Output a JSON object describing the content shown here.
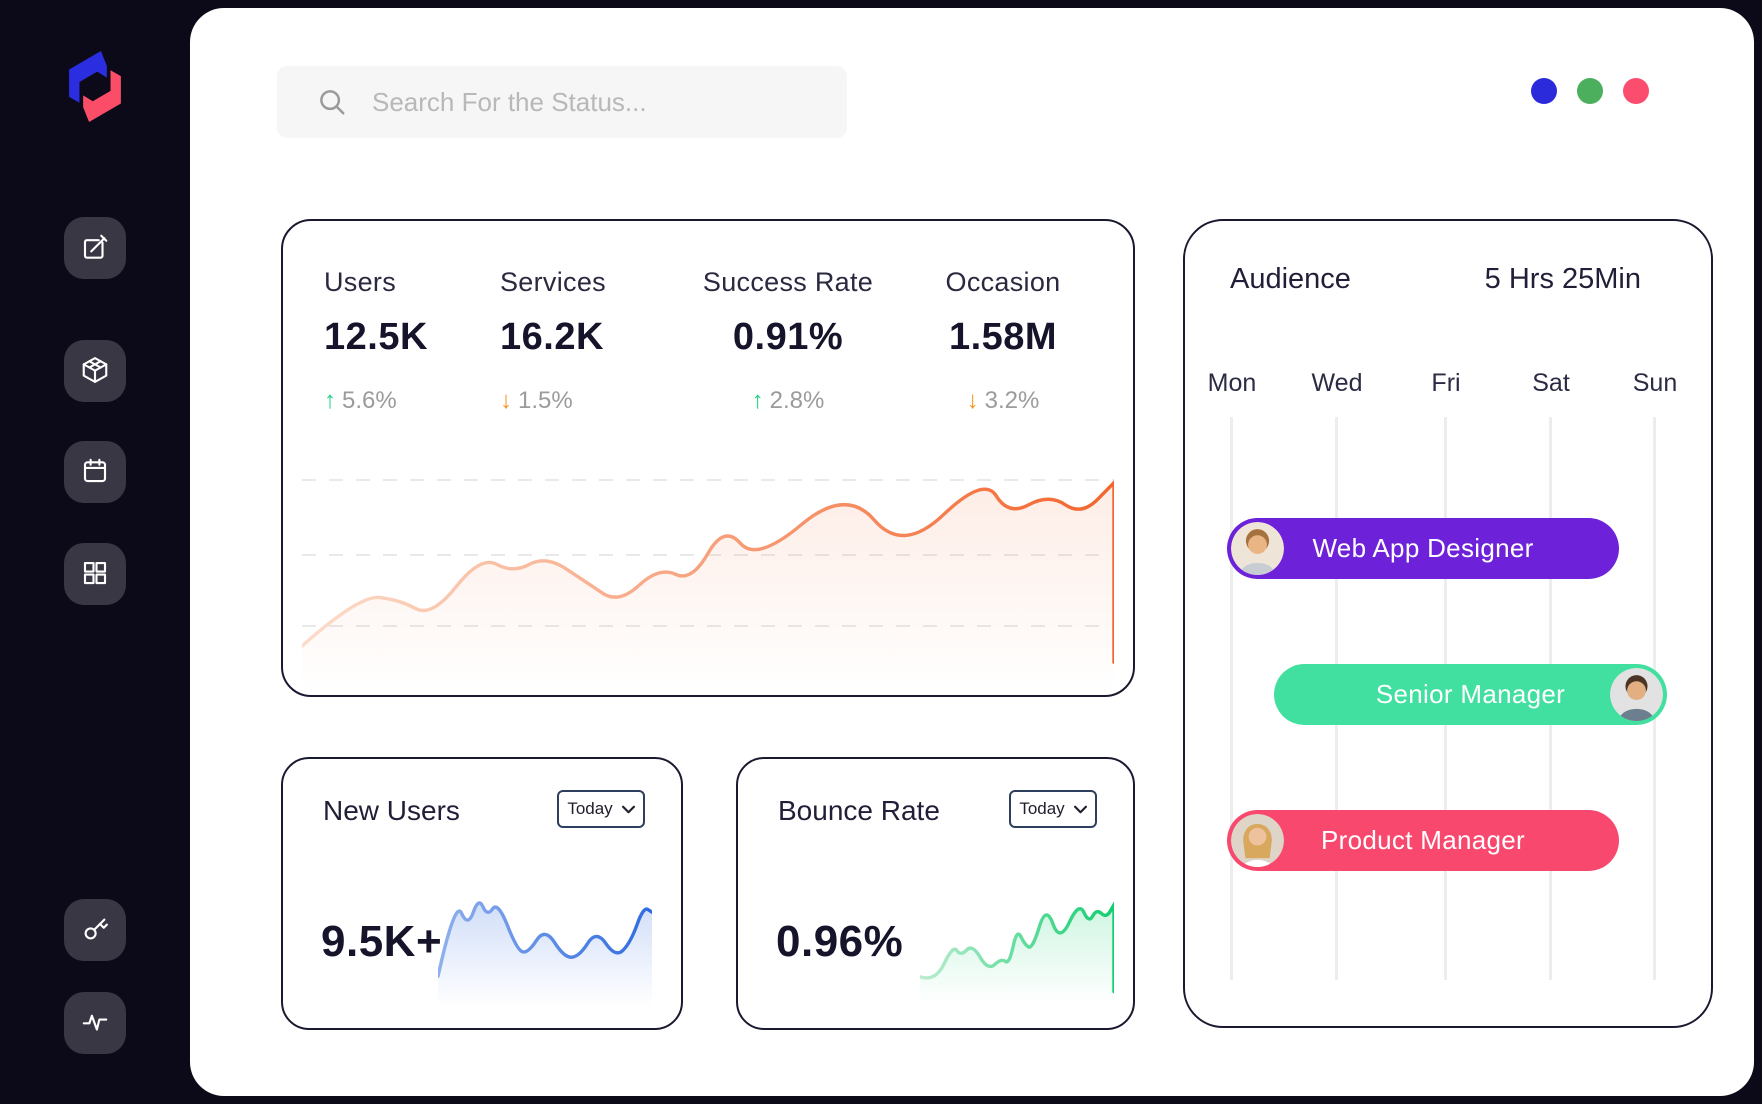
{
  "topbar": {
    "search_placeholder": "Search For the Status...",
    "window_dots": [
      {
        "name": "blue",
        "color": "#2b2bdb"
      },
      {
        "name": "green",
        "color": "#4caf5e"
      },
      {
        "name": "pink",
        "color": "#fb4d6d"
      }
    ]
  },
  "sidebar": {
    "items": [
      {
        "name": "edit"
      },
      {
        "name": "modules"
      },
      {
        "name": "calendar"
      },
      {
        "name": "apps"
      },
      {
        "name": "access-key"
      },
      {
        "name": "activity"
      }
    ]
  },
  "stats_card": {
    "metrics": [
      {
        "label": "Users",
        "value": "12.5K",
        "delta": "5.6%",
        "direction": "up",
        "arrow": "↑"
      },
      {
        "label": "Services",
        "value": "16.2K",
        "delta": "1.5%",
        "direction": "down",
        "arrow": "↓"
      },
      {
        "label": "Success Rate",
        "value": "0.91%",
        "delta": "2.8%",
        "direction": "up",
        "arrow": "↑"
      },
      {
        "label": "Occasion",
        "value": "1.58M",
        "delta": "3.2%",
        "direction": "down",
        "arrow": "↓"
      }
    ],
    "trend_colors": {
      "up": "#1ed383",
      "down": "#f7941d"
    }
  },
  "new_users_card": {
    "title": "New Users",
    "range_label": "Today",
    "value": "9.5K+"
  },
  "bounce_rate_card": {
    "title": "Bounce Rate",
    "range_label": "Today",
    "value": "0.96%"
  },
  "audience_card": {
    "title": "Audience",
    "duration": "5 Hrs 25Min",
    "days": [
      "Mon",
      "Wed",
      "Fri",
      "Sat",
      "Sun"
    ],
    "roles": [
      {
        "label": "Web App Designer",
        "color": "#6d22d9",
        "avatar_side": "left"
      },
      {
        "label": "Senior Manager",
        "color": "#41e0a0",
        "avatar_side": "right"
      },
      {
        "label": "Product Manager",
        "color": "#f9486e",
        "avatar_side": "left"
      }
    ]
  },
  "chart_data": [
    {
      "id": "traffic",
      "type": "area",
      "title": "Traffic trend sparkline (no axes, values are relative levels 0-100)",
      "x": [
        0,
        7,
        12,
        16,
        22,
        26,
        30,
        35,
        39,
        44,
        48,
        52,
        56,
        67,
        74,
        84,
        87,
        92,
        96,
        100
      ],
      "y": [
        16,
        39,
        37,
        29,
        57,
        49,
        57,
        45,
        35,
        52,
        45,
        71,
        54,
        88,
        58,
        93,
        75,
        85,
        75,
        90
      ],
      "color": "#f2652e",
      "stroke_gradient": [
        "#fcdcca",
        "#f2652e"
      ],
      "fill_opacity": 0.12,
      "grid": "3 dashed horizontal lines",
      "end_drop": true
    },
    {
      "id": "new_users",
      "type": "area",
      "title": "New users sparkline (relative levels 0-100)",
      "x": [
        0,
        8,
        14,
        19,
        23,
        28,
        37,
        42,
        50,
        59,
        66,
        74,
        83,
        90,
        96,
        100
      ],
      "y": [
        24,
        95,
        69,
        97,
        79,
        93,
        48,
        45,
        69,
        41,
        42,
        67,
        41,
        55,
        88,
        83
      ],
      "color": "#2f6be0",
      "stroke_gradient": [
        "#8fb0ec",
        "#2f6be0"
      ],
      "fill_opacity": 0.22,
      "grid": "none",
      "end_drop": false
    },
    {
      "id": "bounce_rate",
      "type": "area",
      "title": "Bounce rate sparkline (relative levels 0-100)",
      "x": [
        0,
        8,
        17,
        21,
        27,
        35,
        42,
        46,
        50,
        54,
        58,
        65,
        72,
        82,
        87,
        91,
        96,
        100
      ],
      "y": [
        23,
        18,
        54,
        43,
        55,
        29,
        41,
        35,
        70,
        54,
        50,
        93,
        56,
        96,
        75,
        89,
        80,
        93
      ],
      "color": "#10ce6e",
      "stroke_gradient": [
        "#bdecd1",
        "#10ce6e"
      ],
      "fill_opacity": 0.2,
      "grid": "none",
      "end_drop": true
    }
  ]
}
